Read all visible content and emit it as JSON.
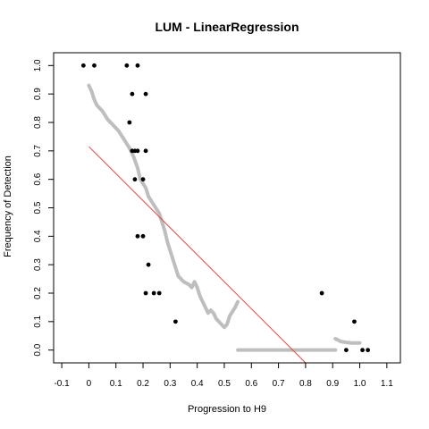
{
  "chart_data": {
    "type": "scatter",
    "title": "LUM - LinearRegression",
    "xlabel": "Progression to H9",
    "ylabel": "Frequency of Detection",
    "xlim": [
      -0.13,
      1.15
    ],
    "ylim": [
      -0.045,
      1.045
    ],
    "x_ticks": [
      "-0.1",
      "0",
      "0.1",
      "0.2",
      "0.3",
      "0.4",
      "0.5",
      "0.6",
      "0.7",
      "0.8",
      "0.9",
      "1.0",
      "1.1"
    ],
    "y_ticks": [
      "0.0",
      "0.1",
      "0.2",
      "0.3",
      "0.4",
      "0.5",
      "0.6",
      "0.7",
      "0.8",
      "0.9",
      "1.0"
    ],
    "grid": false,
    "legend": "none",
    "colors": {
      "observed": "#000000",
      "fitted": "#bebebe",
      "regression_line": "#e8453c",
      "frame": "#000000"
    },
    "series": [
      {
        "kind": "points",
        "color": "#000000",
        "points": [
          [
            -0.02,
            1.0
          ],
          [
            0.02,
            1.0
          ],
          [
            0.14,
            1.0
          ],
          [
            0.18,
            1.0
          ],
          [
            0.16,
            0.9
          ],
          [
            0.21,
            0.9
          ],
          [
            0.15,
            0.8
          ],
          [
            0.16,
            0.7
          ],
          [
            0.17,
            0.7
          ],
          [
            0.18,
            0.7
          ],
          [
            0.21,
            0.7
          ],
          [
            0.17,
            0.6
          ],
          [
            0.2,
            0.6
          ],
          [
            0.18,
            0.4
          ],
          [
            0.2,
            0.4
          ],
          [
            0.22,
            0.3
          ],
          [
            0.21,
            0.2
          ],
          [
            0.24,
            0.2
          ],
          [
            0.26,
            0.2
          ],
          [
            0.32,
            0.1
          ],
          [
            0.86,
            0.2
          ],
          [
            0.98,
            0.1
          ],
          [
            0.95,
            0.0
          ],
          [
            1.01,
            0.0
          ],
          [
            1.03,
            0.0
          ]
        ]
      },
      {
        "kind": "curve",
        "color": "#bebebe",
        "points": [
          [
            0.0,
            0.93
          ],
          [
            0.01,
            0.91
          ],
          [
            0.02,
            0.88
          ],
          [
            0.03,
            0.86
          ],
          [
            0.05,
            0.84
          ],
          [
            0.07,
            0.81
          ],
          [
            0.09,
            0.79
          ],
          [
            0.11,
            0.77
          ],
          [
            0.13,
            0.74
          ],
          [
            0.15,
            0.71
          ],
          [
            0.165,
            0.68
          ],
          [
            0.18,
            0.64
          ],
          [
            0.19,
            0.6
          ],
          [
            0.21,
            0.57
          ],
          [
            0.22,
            0.54
          ],
          [
            0.24,
            0.51
          ],
          [
            0.26,
            0.48
          ],
          [
            0.27,
            0.45
          ],
          [
            0.28,
            0.42
          ],
          [
            0.29,
            0.38
          ],
          [
            0.3,
            0.35
          ],
          [
            0.31,
            0.32
          ],
          [
            0.32,
            0.29
          ],
          [
            0.33,
            0.26
          ],
          [
            0.35,
            0.24
          ],
          [
            0.37,
            0.23
          ],
          [
            0.38,
            0.22
          ],
          [
            0.39,
            0.24
          ],
          [
            0.4,
            0.22
          ],
          [
            0.41,
            0.19
          ],
          [
            0.42,
            0.17
          ],
          [
            0.43,
            0.15
          ],
          [
            0.44,
            0.13
          ],
          [
            0.45,
            0.14
          ],
          [
            0.46,
            0.13
          ],
          [
            0.47,
            0.11
          ],
          [
            0.48,
            0.1
          ],
          [
            0.5,
            0.08
          ],
          [
            0.51,
            0.09
          ],
          [
            0.52,
            0.12
          ],
          [
            0.54,
            0.15
          ],
          [
            0.55,
            0.17
          ]
        ]
      },
      {
        "kind": "segment",
        "color": "#bebebe",
        "points": [
          [
            0.55,
            0.0
          ],
          [
            0.91,
            0.0
          ]
        ]
      },
      {
        "kind": "curve",
        "color": "#bebebe",
        "points": [
          [
            0.91,
            0.04
          ],
          [
            0.92,
            0.035
          ],
          [
            0.93,
            0.03
          ],
          [
            0.95,
            0.027
          ],
          [
            0.97,
            0.025
          ],
          [
            1.0,
            0.025
          ]
        ]
      },
      {
        "kind": "line",
        "color": "#e8453c",
        "points": [
          [
            0.0,
            0.715
          ],
          [
            0.8,
            -0.045
          ]
        ]
      }
    ]
  }
}
